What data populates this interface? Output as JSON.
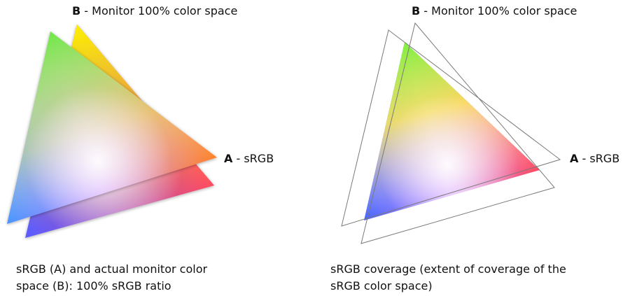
{
  "left_panel": {
    "label_b_letter": "B",
    "label_b_text": " - Monitor 100% color space",
    "label_a_letter": "A",
    "label_a_text": " - sRGB",
    "caption_line1": "sRGB (A) and actual monitor color",
    "caption_line2": "space (B): 100% sRGB ratio"
  },
  "right_panel": {
    "label_b_letter": "B",
    "label_b_text": " - Monitor 100% color space",
    "label_a_letter": "A",
    "label_a_text": " - sRGB",
    "caption_line1": "sRGB coverage (extent of coverage of the",
    "caption_line2": "sRGB color space)"
  },
  "colors": {
    "green_vertex": "#6fe84a",
    "red_vertex": "#ff4a63",
    "blue_vertex": "#5b5cff",
    "orange_vertex": "#ff7a1a",
    "center_white": "#ffffff",
    "outline": "#7a7a7a"
  }
}
